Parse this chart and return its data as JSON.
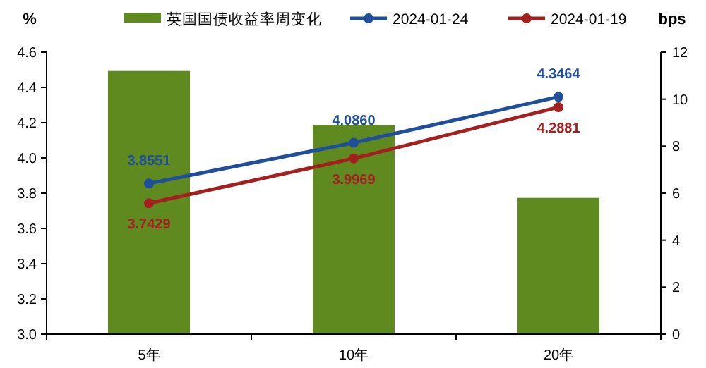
{
  "chart_data": {
    "type": "bar",
    "categories": [
      "5年",
      "10年",
      "20年"
    ],
    "ylabel": "%",
    "y2label": "bps",
    "ylim": [
      3.0,
      4.6
    ],
    "yticks": [
      {
        "value": 3,
        "label": "3.0"
      },
      3.2,
      3.4,
      3.6,
      3.8,
      {
        "value": 4,
        "label": "4.0"
      },
      4.2,
      4.4,
      4.6
    ],
    "y2lim": [
      0,
      12
    ],
    "y2ticks": [
      0,
      2,
      4,
      6,
      8,
      10,
      12
    ],
    "grid": false,
    "legend": "top",
    "series": [
      {
        "name": "英国国债收益率周变化",
        "axis": "y2",
        "color": "#5e8a1f",
        "values": [
          11.2,
          8.9,
          5.8
        ]
      },
      {
        "name": "2024-01-24",
        "type": "line",
        "axis": "y",
        "color": "#1f4e9a",
        "marker": "circle",
        "values": [
          3.8551,
          4.086,
          4.3464
        ],
        "value_labels": [
          "3.8551",
          "4.0860",
          "4.3464"
        ]
      },
      {
        "name": "2024-01-19",
        "type": "line",
        "axis": "y",
        "color": "#a3201f",
        "marker": "circle",
        "values": [
          3.7429,
          3.9969,
          4.2881
        ],
        "value_labels": [
          "3.7429",
          "3.9969",
          "4.2881"
        ]
      }
    ]
  }
}
